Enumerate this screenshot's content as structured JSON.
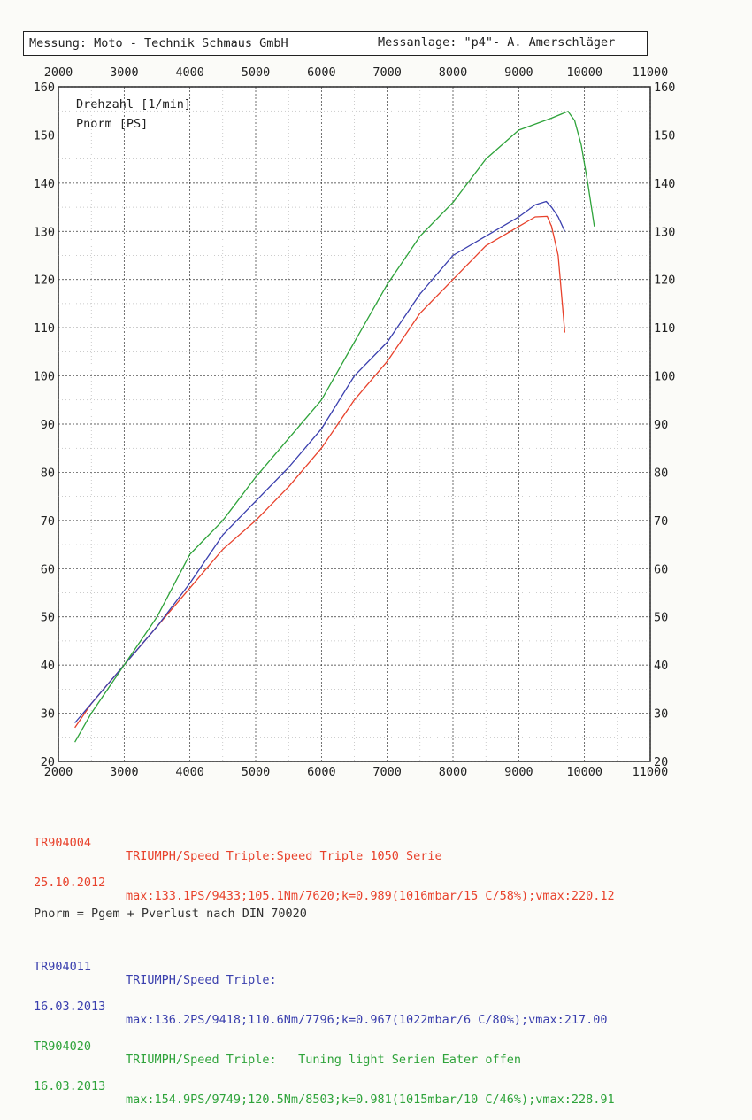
{
  "header": {
    "left": "Messung: Moto - Technik Schmaus GmbH",
    "right": "Messanlage: \"p4\"- A. Amerschläger"
  },
  "chart_data": {
    "type": "line",
    "title": "",
    "legend_labels": [
      "Drehzahl [1/min]",
      "Pnorm [PS]"
    ],
    "xlim": [
      2000,
      11000
    ],
    "ylim": [
      20,
      160
    ],
    "x_ticks": [
      2000,
      3000,
      4000,
      5000,
      6000,
      7000,
      8000,
      9000,
      10000,
      11000
    ],
    "y_ticks": [
      20,
      30,
      40,
      50,
      60,
      70,
      80,
      90,
      100,
      110,
      120,
      130,
      140,
      150,
      160
    ],
    "grid": true,
    "series": [
      {
        "name": "TR904004",
        "color": "#e8422c",
        "x": [
          2250,
          2500,
          3000,
          3500,
          4000,
          4500,
          5000,
          5500,
          6000,
          6500,
          7000,
          7500,
          8000,
          8500,
          9000,
          9250,
          9433,
          9500,
          9600,
          9700
        ],
        "y": [
          27,
          32,
          40,
          48,
          56,
          64,
          70,
          77,
          85,
          95,
          103,
          113,
          120,
          127,
          131,
          133,
          133.1,
          131,
          125,
          109
        ]
      },
      {
        "name": "TR904011",
        "color": "#3a3fae",
        "x": [
          2250,
          2500,
          3000,
          3500,
          4000,
          4500,
          5000,
          5500,
          6000,
          6500,
          7000,
          7500,
          8000,
          8500,
          9000,
          9250,
          9418,
          9500,
          9600,
          9700
        ],
        "y": [
          28,
          32,
          40,
          48,
          57,
          67,
          74,
          81,
          89,
          100,
          107,
          117,
          125,
          129,
          133,
          135.5,
          136.2,
          135,
          133,
          130
        ]
      },
      {
        "name": "TR904020",
        "color": "#2ea33a",
        "x": [
          2250,
          2500,
          3000,
          3500,
          4000,
          4500,
          5000,
          5500,
          6000,
          6500,
          7000,
          7500,
          8000,
          8500,
          9000,
          9500,
          9749,
          9850,
          9950,
          10050,
          10150
        ],
        "y": [
          24,
          30,
          40,
          50,
          63,
          70,
          79,
          87,
          95,
          107,
          119,
          129,
          136,
          145,
          151,
          153.5,
          154.9,
          153,
          148,
          140,
          131
        ]
      }
    ]
  },
  "runs": [
    {
      "id": "TR904004",
      "date": "25.10.2012",
      "desc": "TRIUMPH/Speed Triple:Speed Triple 1050 Serie",
      "stats": "max:133.1PS/9433;105.1Nm/7620;k=0.989(1016mbar/15 C/58%);vmax:220.12",
      "color": "#e8422c"
    },
    {
      "id": "TR904011",
      "date": "16.03.2013",
      "desc": "TRIUMPH/Speed Triple:",
      "stats": "max:136.2PS/9418;110.6Nm/7796;k=0.967(1022mbar/6 C/80%);vmax:217.00",
      "color": "#3a3fae"
    },
    {
      "id": "TR904020",
      "date": "16.03.2013",
      "desc": "TRIUMPH/Speed Triple:   Tuning light Serien Eater offen",
      "stats": "max:154.9PS/9749;120.5Nm/8503;k=0.981(1015mbar/10 C/46%);vmax:228.91",
      "color": "#2ea33a"
    }
  ],
  "footnote": "Pnorm = Pgem + Pverlust nach DIN 70020"
}
